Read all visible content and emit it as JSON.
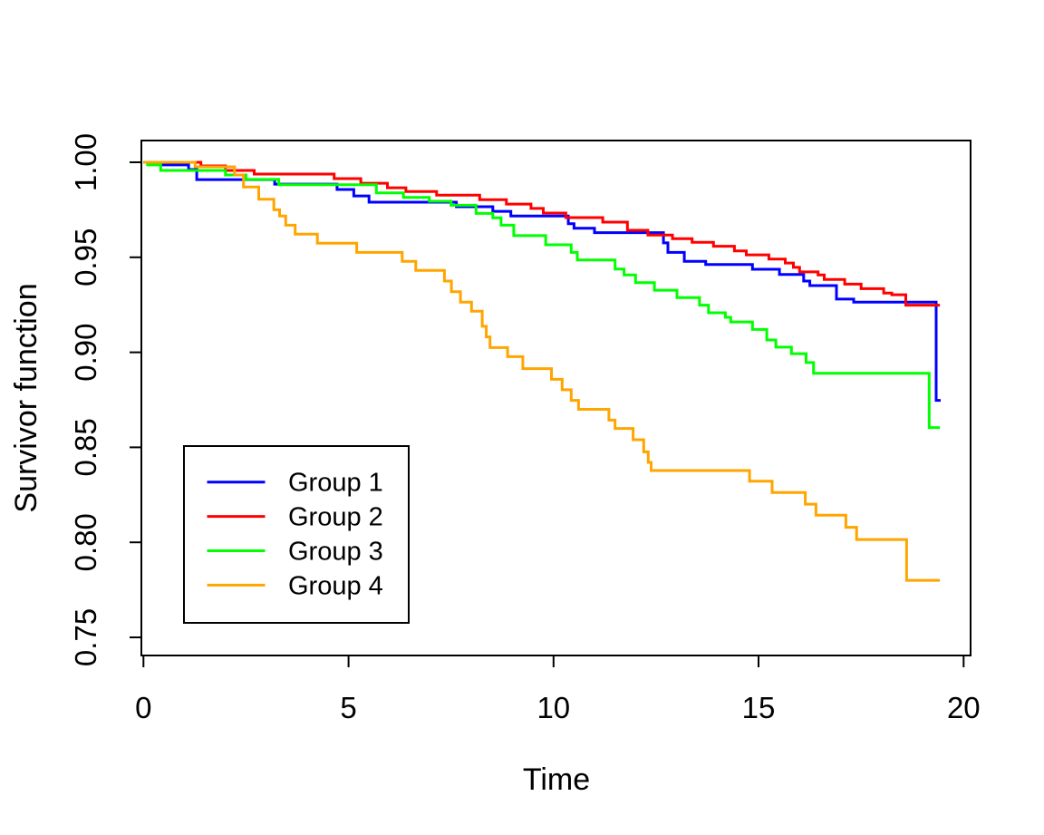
{
  "figure": {
    "background": "#FFFFFF",
    "frame_color": "#000000"
  },
  "axes": {
    "xlabel": "Time",
    "ylabel": "Survivor function",
    "xtick_labels": [
      "0",
      "5",
      "10",
      "15",
      "20"
    ],
    "ytick_labels": [
      "0.75",
      "0.80",
      "0.85",
      "0.90",
      "0.95",
      "1.00"
    ]
  },
  "legend": {
    "entries": [
      {
        "label": "Group 1",
        "color": "#0000FF"
      },
      {
        "label": "Group 2",
        "color": "#FF0000"
      },
      {
        "label": "Group 3",
        "color": "#00FF00"
      },
      {
        "label": "Group 4",
        "color": "#FFA500"
      }
    ]
  },
  "chart_data": {
    "type": "line",
    "subtype": "kaplan-meier-step",
    "title": "",
    "xlabel": "Time",
    "ylabel": "Survivor function",
    "xlim": [
      0,
      20
    ],
    "ylim": [
      0.75,
      1.0
    ],
    "xticks": [
      0,
      5,
      10,
      15,
      20
    ],
    "yticks": [
      0.75,
      0.8,
      0.85,
      0.9,
      0.95,
      1.0
    ],
    "grid": false,
    "legend_position": "left-center",
    "series": [
      {
        "name": "Group 1",
        "color": "#0000FF",
        "end_time": 19.44,
        "points": [
          [
            0,
            1.0
          ],
          [
            0.45,
            0.9986
          ],
          [
            1.1,
            0.9962
          ],
          [
            1.3,
            0.9909
          ],
          [
            3.2,
            0.9885
          ],
          [
            4.72,
            0.9857
          ],
          [
            5.13,
            0.9823
          ],
          [
            5.5,
            0.979
          ],
          [
            7.63,
            0.9766
          ],
          [
            8.52,
            0.9742
          ],
          [
            8.96,
            0.9717
          ],
          [
            10.36,
            0.9677
          ],
          [
            10.5,
            0.9653
          ],
          [
            11.0,
            0.963
          ],
          [
            12.68,
            0.9576
          ],
          [
            12.79,
            0.9526
          ],
          [
            13.19,
            0.9479
          ],
          [
            13.71,
            0.9462
          ],
          [
            14.85,
            0.9437
          ],
          [
            15.51,
            0.941
          ],
          [
            16.1,
            0.9375
          ],
          [
            16.25,
            0.9351
          ],
          [
            16.9,
            0.928
          ],
          [
            17.32,
            0.9264
          ],
          [
            19.33,
            0.8747
          ]
        ]
      },
      {
        "name": "Group 2",
        "color": "#FF0000",
        "end_time": 19.42,
        "points": [
          [
            0,
            1.0
          ],
          [
            1.4,
            0.9981
          ],
          [
            2.0,
            0.9957
          ],
          [
            2.7,
            0.9938
          ],
          [
            4.65,
            0.9914
          ],
          [
            5.3,
            0.989
          ],
          [
            5.95,
            0.9866
          ],
          [
            6.4,
            0.9846
          ],
          [
            7.15,
            0.9827
          ],
          [
            8.2,
            0.9803
          ],
          [
            8.85,
            0.978
          ],
          [
            9.45,
            0.9757
          ],
          [
            9.75,
            0.9733
          ],
          [
            10.3,
            0.9709
          ],
          [
            11.2,
            0.9685
          ],
          [
            11.8,
            0.9642
          ],
          [
            12.3,
            0.9617
          ],
          [
            12.9,
            0.9598
          ],
          [
            13.38,
            0.9579
          ],
          [
            13.9,
            0.9558
          ],
          [
            14.41,
            0.9534
          ],
          [
            14.7,
            0.9513
          ],
          [
            15.25,
            0.9491
          ],
          [
            15.65,
            0.947
          ],
          [
            15.85,
            0.9447
          ],
          [
            16.0,
            0.9423
          ],
          [
            16.45,
            0.9407
          ],
          [
            16.6,
            0.9383
          ],
          [
            17.1,
            0.9359
          ],
          [
            17.5,
            0.9335
          ],
          [
            18.05,
            0.9312
          ],
          [
            18.25,
            0.9303
          ],
          [
            18.59,
            0.9248
          ]
        ]
      },
      {
        "name": "Group 3",
        "color": "#00FF00",
        "end_time": 19.42,
        "points": [
          [
            0,
            1.0
          ],
          [
            0.1,
            0.9986
          ],
          [
            0.42,
            0.9957
          ],
          [
            2.0,
            0.9933
          ],
          [
            2.5,
            0.991
          ],
          [
            3.3,
            0.9882
          ],
          [
            5.68,
            0.9839
          ],
          [
            6.34,
            0.9815
          ],
          [
            6.97,
            0.9795
          ],
          [
            7.5,
            0.9774
          ],
          [
            8.11,
            0.9731
          ],
          [
            8.52,
            0.9708
          ],
          [
            8.72,
            0.9669
          ],
          [
            9.03,
            0.9614
          ],
          [
            9.81,
            0.9566
          ],
          [
            10.43,
            0.9526
          ],
          [
            10.58,
            0.9486
          ],
          [
            11.5,
            0.9438
          ],
          [
            11.72,
            0.9407
          ],
          [
            12.0,
            0.9367
          ],
          [
            12.46,
            0.9327
          ],
          [
            13.01,
            0.9288
          ],
          [
            13.56,
            0.9248
          ],
          [
            13.78,
            0.9208
          ],
          [
            14.19,
            0.9184
          ],
          [
            14.32,
            0.916
          ],
          [
            14.85,
            0.912
          ],
          [
            15.2,
            0.9065
          ],
          [
            15.42,
            0.9027
          ],
          [
            15.8,
            0.8993
          ],
          [
            16.16,
            0.8946
          ],
          [
            16.34,
            0.889
          ],
          [
            19.16,
            0.8604
          ]
        ]
      },
      {
        "name": "Group 4",
        "color": "#FFA500",
        "end_time": 19.42,
        "points": [
          [
            0,
            1.0
          ],
          [
            1.26,
            0.9976
          ],
          [
            2.22,
            0.9933
          ],
          [
            2.44,
            0.987
          ],
          [
            2.81,
            0.9806
          ],
          [
            3.18,
            0.975
          ],
          [
            3.32,
            0.9717
          ],
          [
            3.47,
            0.9669
          ],
          [
            3.7,
            0.9622
          ],
          [
            4.24,
            0.9574
          ],
          [
            5.2,
            0.9526
          ],
          [
            6.31,
            0.9479
          ],
          [
            6.64,
            0.9431
          ],
          [
            7.34,
            0.9375
          ],
          [
            7.51,
            0.9319
          ],
          [
            7.73,
            0.9264
          ],
          [
            8.0,
            0.9216
          ],
          [
            8.26,
            0.9137
          ],
          [
            8.36,
            0.9081
          ],
          [
            8.45,
            0.9025
          ],
          [
            8.88,
            0.8977
          ],
          [
            9.25,
            0.8914
          ],
          [
            9.95,
            0.8858
          ],
          [
            10.21,
            0.8803
          ],
          [
            10.43,
            0.8747
          ],
          [
            10.61,
            0.87
          ],
          [
            11.35,
            0.8643
          ],
          [
            11.5,
            0.8599
          ],
          [
            11.94,
            0.854
          ],
          [
            12.2,
            0.8476
          ],
          [
            12.31,
            0.8421
          ],
          [
            12.38,
            0.8378
          ],
          [
            14.78,
            0.8322
          ],
          [
            15.33,
            0.8262
          ],
          [
            16.14,
            0.8201
          ],
          [
            16.4,
            0.8143
          ],
          [
            17.13,
            0.8079
          ],
          [
            17.39,
            0.8015
          ],
          [
            18.61,
            0.78
          ]
        ]
      }
    ]
  }
}
